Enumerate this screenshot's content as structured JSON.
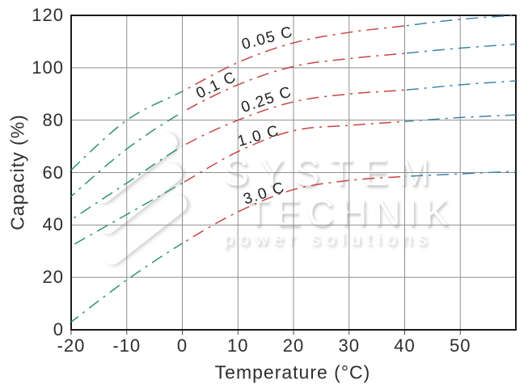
{
  "watermark": {
    "brand_top": "SYSTEM",
    "brand_bottom": "TECHNIK",
    "tagline": "power solutions"
  },
  "chart_data": {
    "type": "line",
    "title": "",
    "xlabel": "Temperature (°C)",
    "ylabel": "Capacity (%)",
    "xlim": [
      -20,
      60
    ],
    "ylim": [
      0,
      120
    ],
    "xticks": [
      -20,
      -10,
      0,
      10,
      20,
      30,
      40,
      50
    ],
    "yticks": [
      0,
      20,
      40,
      60,
      80,
      100,
      120
    ],
    "grid": true,
    "legend_position": "inline-labels",
    "x": [
      -20,
      -10,
      0,
      10,
      20,
      30,
      40,
      50,
      60
    ],
    "series": [
      {
        "name": "0.05 C",
        "values": [
          61,
          80,
          91,
          102,
          109.5,
          113.5,
          116,
          118.5,
          120
        ],
        "label": {
          "x": 331,
          "y": 50,
          "rot": -15
        }
      },
      {
        "name": "0.1 C",
        "values": [
          51,
          69,
          83,
          93.5,
          100.5,
          103.5,
          105.5,
          107.5,
          109
        ],
        "label": {
          "x": 268,
          "y": 108,
          "rot": -26
        }
      },
      {
        "name": "0.25 C",
        "values": [
          42,
          56,
          70,
          80,
          87,
          90,
          91.5,
          93.5,
          95
        ],
        "label": {
          "x": 330,
          "y": 126,
          "rot": -19
        }
      },
      {
        "name": "1.0 C",
        "values": [
          32,
          44,
          56,
          68,
          76,
          78,
          79.5,
          81,
          82
        ],
        "label": {
          "x": 320,
          "y": 171,
          "rot": -16
        }
      },
      {
        "name": "3.0 C",
        "values": [
          3,
          19,
          33,
          45,
          53.5,
          57,
          58.5,
          59.5,
          60.5
        ],
        "label": {
          "x": 327,
          "y": 242,
          "rot": -18
        }
      }
    ],
    "style": {
      "dash_pattern": "dash-dot",
      "line_colors_by_range": [
        {
          "range": [
            -20,
            0
          ],
          "color": "#2f9274"
        },
        {
          "range": [
            0,
            40
          ],
          "color": "#c64545"
        },
        {
          "range": [
            40,
            60
          ],
          "color": "#3e84a8"
        }
      ],
      "grid_color": "#8f8f8f",
      "frame_color": "#1a1a1a",
      "tick_color": "#444444",
      "text_color": "#2d2d2d"
    }
  }
}
